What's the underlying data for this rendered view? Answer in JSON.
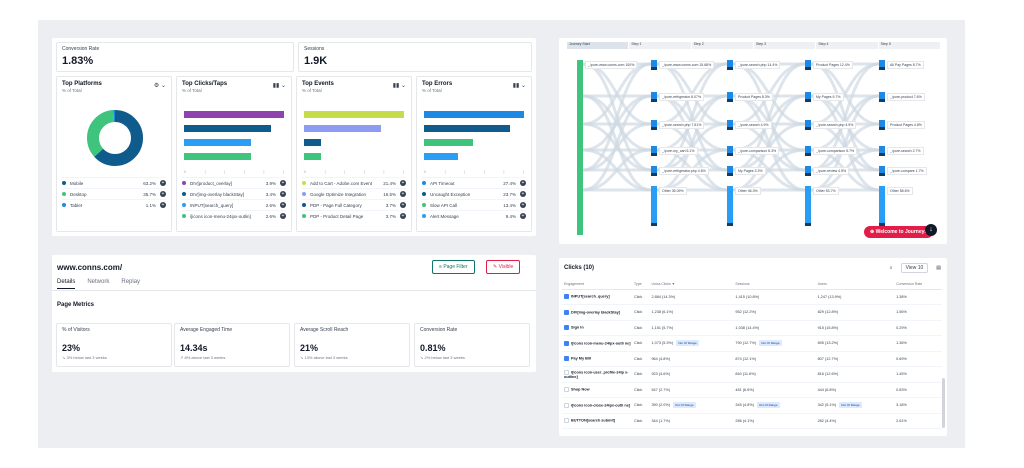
{
  "dashboard": {
    "kpis": [
      {
        "label": "Conversion Rate",
        "value": "1.83%"
      },
      {
        "label": "Sessions",
        "value": "1.9K"
      }
    ],
    "cards": [
      {
        "title": "Top Platforms",
        "sub": "% of Total",
        "items": [
          {
            "name": "Mobile",
            "pct": "63.2%",
            "color": "#0f5c8c"
          },
          {
            "name": "Desktop",
            "pct": "35.7%",
            "color": "#3ec47d"
          },
          {
            "name": "Tablet",
            "pct": "1.1%",
            "color": "#1e88e5"
          }
        ]
      },
      {
        "title": "Top Clicks/Taps",
        "sub": "% of Total",
        "items": [
          {
            "name": "DIV[product_overlay]",
            "pct": "3.9%",
            "color": "#8e44ad"
          },
          {
            "name": "DIV[img-overlay blackStay]",
            "pct": "3.4%",
            "color": "#0f5c8c"
          },
          {
            "name": "INPUT[search_query]",
            "pct": "2.6%",
            "color": "#2a9df4"
          },
          {
            "name": "i[icons icon-menu-24ipx-outlin]",
            "pct": "2.6%",
            "color": "#3ec47d"
          }
        ]
      },
      {
        "title": "Top Events",
        "sub": "% of Total",
        "items": [
          {
            "name": "Add to Cart - Adobe.com Event",
            "pct": "21.4%",
            "color": "#c7dc4a"
          },
          {
            "name": "Google Optimize Integration",
            "pct": "16.5%",
            "color": "#8e9bf2"
          },
          {
            "name": "PDP - Page Full Category",
            "pct": "3.7%",
            "color": "#0f5c8c"
          },
          {
            "name": "PDP - Product Detail Page",
            "pct": "3.7%",
            "color": "#3ec47d"
          }
        ]
      },
      {
        "title": "Top Errors",
        "sub": "% of Total",
        "items": [
          {
            "name": "API Timeout",
            "pct": "27.4%",
            "color": "#1e88e5"
          },
          {
            "name": "Uncaught Exception",
            "pct": "23.7%",
            "color": "#0f5c8c"
          },
          {
            "name": "Slow API Call",
            "pct": "13.4%",
            "color": "#3ec47d"
          },
          {
            "name": "Alert Message",
            "pct": "9.4%",
            "color": "#2a9df4"
          }
        ]
      }
    ]
  },
  "chart_data": [
    {
      "type": "pie",
      "title": "Top Platforms",
      "categories": [
        "Mobile",
        "Desktop",
        "Tablet"
      ],
      "values": [
        63.2,
        35.7,
        1.1
      ]
    },
    {
      "type": "bar",
      "title": "Top Clicks/Taps",
      "categories": [
        "DIV[product_overlay]",
        "DIV[img-overlay blackStay]",
        "INPUT[search_query]",
        "i[icons icon-menu-24ipx-outlin]"
      ],
      "values": [
        3.9,
        3.4,
        2.6,
        2.6
      ]
    },
    {
      "type": "bar",
      "title": "Top Events",
      "categories": [
        "Add to Cart - Adobe.com Event",
        "Google Optimize Integration",
        "PDP - Page Full Category",
        "PDP - Product Detail Page"
      ],
      "values": [
        21.4,
        16.5,
        3.7,
        3.7
      ]
    },
    {
      "type": "bar",
      "title": "Top Errors",
      "categories": [
        "API Timeout",
        "Uncaught Exception",
        "Slow API Call",
        "Alert Message"
      ],
      "values": [
        27.4,
        23.7,
        13.4,
        9.4
      ]
    }
  ],
  "sankey": {
    "columns": [
      "Journey Start",
      "Step 1",
      "Step 2",
      "Step 3",
      "Step 4",
      "Step 5"
    ],
    "labels": [
      {
        "text": "_/pure-www.conns.com 100%",
        "col": 0,
        "row": 0
      },
      {
        "text": "_/pure-www.conns.com 15.68%",
        "col": 1,
        "row": 0
      },
      {
        "text": "_/pure-refrigerator 8.07%",
        "col": 1,
        "row": 1
      },
      {
        "text": "_/pure-search.php 7.51%",
        "col": 1,
        "row": 2
      },
      {
        "text": "_/pure-my_cart 6.1%",
        "col": 1,
        "row": 3
      },
      {
        "text": "_/pure-refrigerator.php 4.6%",
        "col": 1,
        "row": 4
      },
      {
        "text": "Other 35.09%",
        "col": 1,
        "row": 5
      },
      {
        "text": "_/pure-search.php 14.4%",
        "col": 2,
        "row": 0
      },
      {
        "text": "Product Pages 8.3%",
        "col": 2,
        "row": 1
      },
      {
        "text": "_/pure-search 4.9%",
        "col": 2,
        "row": 2
      },
      {
        "text": "_/pure-comparison 6.3%",
        "col": 2,
        "row": 3
      },
      {
        "text": "My Pages 3.3%",
        "col": 2,
        "row": 4
      },
      {
        "text": "Other 46.3%",
        "col": 2,
        "row": 5
      },
      {
        "text": "Product Pages 12.4%",
        "col": 3,
        "row": 0
      },
      {
        "text": "My Pages 9.7%",
        "col": 3,
        "row": 1
      },
      {
        "text": "_/pure-search.php 4.9%",
        "col": 3,
        "row": 2
      },
      {
        "text": "_/pure-comparison 5.7%",
        "col": 3,
        "row": 3
      },
      {
        "text": "_/pure-review 4.5%",
        "col": 3,
        "row": 4
      },
      {
        "text": "Other 53.7%",
        "col": 3,
        "row": 5
      },
      {
        "text": "All Pay Pages 8.7%",
        "col": 4,
        "row": 0
      },
      {
        "text": "_/pure-product 7.6%",
        "col": 4,
        "row": 1
      },
      {
        "text": "Product Pages 4.8%",
        "col": 4,
        "row": 2
      },
      {
        "text": "_/pure-search 2.7%",
        "col": 4,
        "row": 3
      },
      {
        "text": "_/pure-compare 1.7%",
        "col": 4,
        "row": 4
      },
      {
        "text": "Other 58.6%",
        "col": 4,
        "row": 5
      }
    ],
    "welcome_label": "Welcome to Journeys",
    "download_icon": "download-icon"
  },
  "detail": {
    "url": "www.conns.com/",
    "page_filter": "Page Filter",
    "visible": "Visible",
    "tabs": [
      "Details",
      "Network",
      "Replay"
    ],
    "section_title": "Page Metrics",
    "metrics": [
      {
        "label": "% of Visitors",
        "value": "23%",
        "change": "↘ 3% below last 3 weeks"
      },
      {
        "label": "Average Engaged Time",
        "value": "14.34s",
        "change": "↗ 8% above last 3 weeks"
      },
      {
        "label": "Average Scroll Reach",
        "value": "21%",
        "change": "↘ 13% above last 3 weeks"
      },
      {
        "label": "Conversion Rate",
        "value": "0.81%",
        "change": "↘ 2% below last 3 weeks"
      }
    ]
  },
  "clicks": {
    "title": "Clicks (10)",
    "view_select": "View 10",
    "columns": [
      "Engagement",
      "Type",
      "Unica Clicks ▼",
      "Sessions",
      "Users",
      "Conversion Rate"
    ],
    "rows": [
      {
        "checked": true,
        "name": "INPUT[search_query]",
        "type": "Click",
        "clicks": "2,884 (14.3%)",
        "sessions": "1,415 (10.8%)",
        "users": "1,247 (13.9%)",
        "conv": "1.38%",
        "tags": []
      },
      {
        "checked": true,
        "name": "DIV[img-overlay blackStay]",
        "type": "Click",
        "clicks": "1,238 (6.1%)",
        "sessions": "952 (12.2%)",
        "users": "829 (12.8%)",
        "conv": "1.56%",
        "tags": []
      },
      {
        "checked": true,
        "name": "Sign In",
        "type": "Click",
        "clicks": "1,151 (5.7%)",
        "sessions": "1,038 (14.4%)",
        "users": "915 (15.8%)",
        "conv": "0.29%",
        "tags": []
      },
      {
        "checked": true,
        "name": "i[icons icon-menu-24ipx-outli ne]",
        "type": "Click",
        "clicks": "1,073 (5.3%)",
        "sessions": "790 (12.7%)",
        "users": "695 (13.2%)",
        "conv": "1.36%",
        "tags": [
          "Out Of Range",
          "Out Of Range"
        ]
      },
      {
        "checked": true,
        "name": "Pay My Bill",
        "type": "Click",
        "clicks": "964 (4.8%)",
        "sessions": "874 (12.1%)",
        "users": "807 (12.7%)",
        "conv": "0.69%",
        "tags": []
      },
      {
        "checked": false,
        "name": "i[icons icon-user_profile-24ip x-outline]",
        "type": "Click",
        "clicks": "923 (4.6%)",
        "sessions": "840 (11.6%)",
        "users": "816 (12.6%)",
        "conv": "1.45%",
        "tags": []
      },
      {
        "checked": false,
        "name": "Shop Now",
        "type": "Click",
        "clicks": "547 (2.7%)",
        "sessions": "481 (6.6%)",
        "users": "444 (6.8%)",
        "conv": "0.83%",
        "tags": []
      },
      {
        "checked": false,
        "name": "i[icons icon-close-24ipx-outli ne]",
        "type": "Click",
        "clicks": "390 (2.0%)",
        "sessions": "345 (4.8%)",
        "users": "342 (5.1%)",
        "conv": "3.18%",
        "tags": [
          "Out Of Range",
          "Out Of Range",
          "Out Of Range"
        ]
      },
      {
        "checked": false,
        "name": "BUTTON[search submit]",
        "type": "Click",
        "clicks": "344 (1.7%)",
        "sessions": "286 (4.1%)",
        "users": "282 (4.4%)",
        "conv": "2.61%",
        "tags": []
      }
    ]
  }
}
